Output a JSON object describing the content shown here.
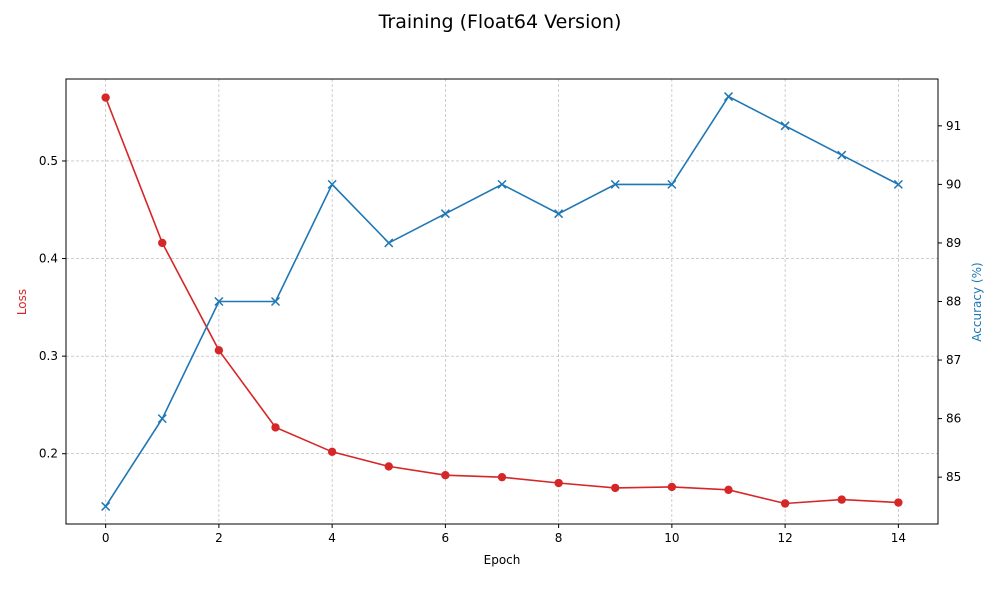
{
  "chart_data": {
    "type": "line",
    "title": "Training (Float64 Version)",
    "xlabel": "Epoch",
    "ylabel_left": "Loss",
    "ylabel_right": "Accuracy (%)",
    "x": [
      0,
      1,
      2,
      3,
      4,
      5,
      6,
      7,
      8,
      9,
      10,
      11,
      12,
      13,
      14
    ],
    "xlim": [
      -0.7,
      14.7
    ],
    "x_ticks": [
      0,
      2,
      4,
      6,
      8,
      10,
      12,
      14
    ],
    "grid": true,
    "left_axis": {
      "ylim": [
        0.128,
        0.584
      ],
      "ticks": [
        "0.2",
        "0.3",
        "0.4",
        "0.5"
      ],
      "color": "#d62728"
    },
    "right_axis": {
      "ylim": [
        84.2,
        91.8
      ],
      "ticks": [
        "85",
        "86",
        "87",
        "88",
        "89",
        "90",
        "91"
      ],
      "color": "#1f77b4"
    },
    "series": [
      {
        "axis": "left",
        "marker": "circle",
        "color": "#d62728",
        "values": [
          0.565,
          0.416,
          0.306,
          0.227,
          0.202,
          0.187,
          0.178,
          0.176,
          0.17,
          0.165,
          0.166,
          0.163,
          0.149,
          0.153,
          0.15
        ]
      },
      {
        "axis": "right",
        "marker": "x",
        "color": "#1f77b4",
        "values": [
          84.5,
          86.0,
          88.0,
          88.0,
          90.0,
          89.0,
          89.5,
          90.0,
          89.5,
          90.0,
          90.0,
          91.5,
          91.0,
          90.5,
          90.0
        ]
      }
    ]
  }
}
